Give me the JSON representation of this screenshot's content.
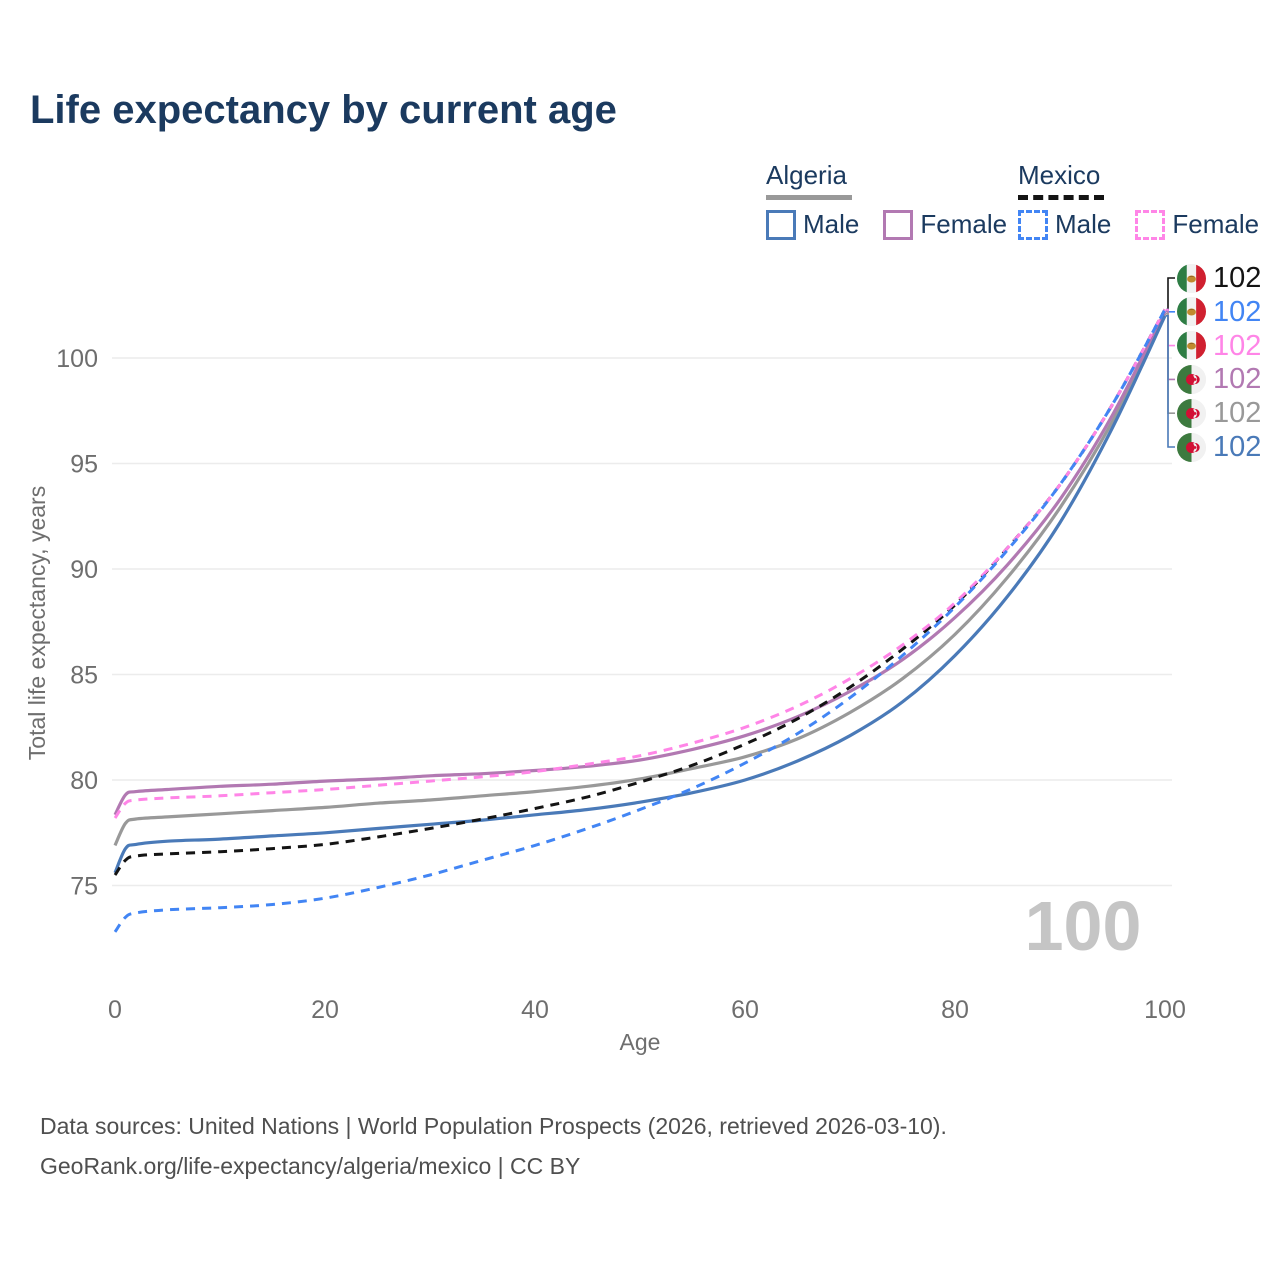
{
  "title": "Life expectancy by current age",
  "legend": {
    "algeria": {
      "title": "Algeria",
      "male": "Male",
      "female": "Female",
      "line_style": "solid"
    },
    "mexico": {
      "title": "Mexico",
      "male": "Male",
      "female": "Female",
      "line_style": "dashed"
    }
  },
  "colors": {
    "title_text": "#1b3a5f",
    "algeria_underline": "#999999",
    "mexico_underline": "#141414",
    "algeria_male": "#4a7ab8",
    "algeria_female": "#b279b2",
    "algeria_both": "#999999",
    "mexico_male": "#4285f4",
    "mexico_female": "#ff85e7",
    "mexico_both": "#141414",
    "grid": "#ececec",
    "axis_text": "#6e6e6e",
    "watermark": "#c5c5c5",
    "footer_text": "#4f4f4f"
  },
  "watermark": "100",
  "footer": {
    "line1": "Data sources: United Nations | World Population Prospects (2026, retrieved 2026-03-10).",
    "line2": "GeoRank.org/life-expectancy/algeria/mexico | CC BY"
  },
  "end_labels": [
    {
      "flag": "mexico-flag-icon",
      "country": "Mexico",
      "value": "102",
      "color": "#141414",
      "series": 3
    },
    {
      "flag": "mexico-flag-icon",
      "country": "Mexico",
      "value": "102",
      "color": "#4285f4",
      "series": 5
    },
    {
      "flag": "mexico-flag-icon",
      "country": "Mexico",
      "value": "102",
      "color": "#ff85e7",
      "series": 4
    },
    {
      "flag": "algeria-flag-icon",
      "country": "Algeria",
      "value": "102",
      "color": "#b279b2",
      "series": 1
    },
    {
      "flag": "algeria-flag-icon",
      "country": "Algeria",
      "value": "102",
      "color": "#999999",
      "series": 0
    },
    {
      "flag": "algeria-flag-icon",
      "country": "Algeria",
      "value": "102",
      "color": "#4a7ab8",
      "series": 2
    }
  ],
  "chart_data": {
    "type": "line",
    "title": "Life expectancy by current age",
    "xlabel": "Age",
    "ylabel": "Total life expectancy, years",
    "xlim": [
      0,
      100
    ],
    "ylim": [
      72,
      103
    ],
    "xticks": [
      0,
      20,
      40,
      60,
      80,
      100
    ],
    "yticks": [
      75,
      80,
      85,
      90,
      95,
      100
    ],
    "grid": true,
    "legend_position": "top-right",
    "x": [
      0,
      1,
      2,
      5,
      10,
      15,
      20,
      25,
      30,
      35,
      40,
      45,
      50,
      55,
      60,
      65,
      70,
      75,
      80,
      85,
      90,
      95,
      100
    ],
    "series": [
      {
        "name": "Algeria Both sexes",
        "country": "Algeria",
        "sex": "Both",
        "style": "solid",
        "color": "#999999",
        "values": [
          76.9,
          77.95,
          78.15,
          78.25,
          78.4,
          78.55,
          78.7,
          78.9,
          79.05,
          79.25,
          79.45,
          79.7,
          80.05,
          80.55,
          81.1,
          81.95,
          83.2,
          84.8,
          86.9,
          89.6,
          92.9,
          97.0,
          102.1
        ]
      },
      {
        "name": "Algeria Female",
        "country": "Algeria",
        "sex": "Female",
        "style": "solid",
        "color": "#b279b2",
        "values": [
          78.35,
          79.3,
          79.45,
          79.55,
          79.7,
          79.8,
          79.95,
          80.05,
          80.2,
          80.3,
          80.45,
          80.65,
          80.95,
          81.45,
          82.1,
          83.0,
          84.2,
          85.7,
          87.7,
          90.2,
          93.3,
          97.3,
          102.2
        ]
      },
      {
        "name": "Algeria Male",
        "country": "Algeria",
        "sex": "Male",
        "style": "solid",
        "color": "#4a7ab8",
        "values": [
          75.6,
          76.75,
          76.95,
          77.1,
          77.2,
          77.35,
          77.5,
          77.7,
          77.9,
          78.1,
          78.35,
          78.6,
          78.95,
          79.4,
          80.0,
          80.9,
          82.1,
          83.7,
          85.9,
          88.7,
          92.2,
          96.7,
          102.0
        ]
      },
      {
        "name": "Mexico Both sexes",
        "country": "Mexico",
        "sex": "Both",
        "style": "dashed",
        "color": "#141414",
        "values": [
          75.5,
          76.2,
          76.4,
          76.5,
          76.6,
          76.75,
          76.95,
          77.3,
          77.7,
          78.15,
          78.65,
          79.2,
          79.9,
          80.7,
          81.7,
          82.9,
          84.4,
          86.2,
          88.3,
          91.0,
          94.0,
          97.8,
          102.3
        ]
      },
      {
        "name": "Mexico Female",
        "country": "Mexico",
        "sex": "Female",
        "style": "dashed",
        "color": "#ff85e7",
        "values": [
          78.2,
          78.9,
          79.05,
          79.15,
          79.25,
          79.4,
          79.55,
          79.75,
          79.95,
          80.15,
          80.4,
          80.75,
          81.15,
          81.75,
          82.5,
          83.5,
          84.8,
          86.4,
          88.4,
          91.0,
          94.0,
          97.8,
          102.3
        ]
      },
      {
        "name": "Mexico Male",
        "country": "Mexico",
        "sex": "Male",
        "style": "dashed",
        "color": "#4285f4",
        "values": [
          72.8,
          73.5,
          73.7,
          73.85,
          73.95,
          74.1,
          74.4,
          74.9,
          75.5,
          76.2,
          76.9,
          77.7,
          78.6,
          79.6,
          80.8,
          82.2,
          83.9,
          85.9,
          88.2,
          90.9,
          94.0,
          97.8,
          102.3
        ]
      }
    ]
  }
}
